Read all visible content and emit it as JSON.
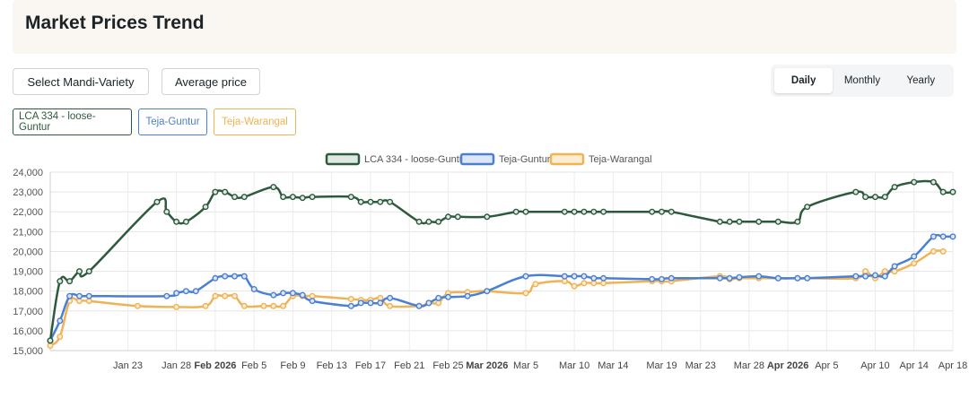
{
  "header": {
    "title": "Market Prices Trend"
  },
  "controls": {
    "select_label": "Select Mandi-Variety",
    "average_label": "Average price",
    "period_tabs": [
      {
        "label": "Daily",
        "active": true
      },
      {
        "label": "Monthly",
        "active": false
      },
      {
        "label": "Yearly",
        "active": false
      }
    ]
  },
  "chips": [
    {
      "label": "LCA 334 - loose-Guntur",
      "color": "#2d5a3d"
    },
    {
      "label": "Teja-Guntur",
      "color": "#4a7fd4"
    },
    {
      "label": "Teja-Warangal",
      "color": "#f0b354"
    }
  ],
  "chart_data": {
    "type": "line",
    "title": "",
    "xlabel": "",
    "ylabel": "",
    "ylim": [
      15000,
      24000
    ],
    "yticks": [
      15000,
      16000,
      17000,
      18000,
      19000,
      20000,
      21000,
      22000,
      23000,
      24000
    ],
    "ytick_labels": [
      "15,000",
      "16,000",
      "17,000",
      "18,000",
      "19,000",
      "20,000",
      "21,000",
      "22,000",
      "23,000",
      "24,000"
    ],
    "xlim": [
      -6,
      87
    ],
    "xticks": [
      {
        "day": 2,
        "label": "Jan 23",
        "bold": false
      },
      {
        "day": 7,
        "label": "Jan 28",
        "bold": false
      },
      {
        "day": 11,
        "label": "Feb 2026",
        "bold": true
      },
      {
        "day": 15,
        "label": "Feb 5",
        "bold": false
      },
      {
        "day": 19,
        "label": "Feb 9",
        "bold": false
      },
      {
        "day": 23,
        "label": "Feb 13",
        "bold": false
      },
      {
        "day": 27,
        "label": "Feb 17",
        "bold": false
      },
      {
        "day": 31,
        "label": "Feb 21",
        "bold": false
      },
      {
        "day": 35,
        "label": "Feb 25",
        "bold": false
      },
      {
        "day": 39,
        "label": "Mar 2026",
        "bold": true
      },
      {
        "day": 43,
        "label": "Mar 5",
        "bold": false
      },
      {
        "day": 48,
        "label": "Mar 10",
        "bold": false
      },
      {
        "day": 52,
        "label": "Mar 14",
        "bold": false
      },
      {
        "day": 57,
        "label": "Mar 19",
        "bold": false
      },
      {
        "day": 61,
        "label": "Mar 23",
        "bold": false
      },
      {
        "day": 66,
        "label": "Mar 28",
        "bold": false
      },
      {
        "day": 70,
        "label": "Apr 2026",
        "bold": true
      },
      {
        "day": 74,
        "label": "Apr 5",
        "bold": false
      },
      {
        "day": 79,
        "label": "Apr 10",
        "bold": false
      },
      {
        "day": 83,
        "label": "Apr 14",
        "bold": false
      },
      {
        "day": 87,
        "label": "Apr 18",
        "bold": false
      }
    ],
    "series": [
      {
        "name": "LCA 334 - loose-Guntur",
        "color": "#2d5a3d",
        "fill": "#dfe8e2",
        "points": [
          [
            -6,
            15500
          ],
          [
            -5,
            18500
          ],
          [
            -4,
            18500
          ],
          [
            -3,
            19000
          ],
          [
            -2,
            19000
          ],
          [
            5,
            22500
          ],
          [
            6,
            22000
          ],
          [
            7,
            21500
          ],
          [
            8,
            21500
          ],
          [
            10,
            22250
          ],
          [
            11,
            23000
          ],
          [
            12,
            23000
          ],
          [
            13,
            22750
          ],
          [
            14,
            22750
          ],
          [
            17,
            23250
          ],
          [
            18,
            22750
          ],
          [
            19,
            22750
          ],
          [
            20,
            22700
          ],
          [
            21,
            22750
          ],
          [
            25,
            22750
          ],
          [
            26,
            22500
          ],
          [
            27,
            22500
          ],
          [
            28,
            22500
          ],
          [
            29,
            22500
          ],
          [
            32,
            21500
          ],
          [
            33,
            21500
          ],
          [
            34,
            21500
          ],
          [
            35,
            21750
          ],
          [
            36,
            21750
          ],
          [
            39,
            21750
          ],
          [
            42,
            22000
          ],
          [
            43,
            22000
          ],
          [
            47,
            22000
          ],
          [
            48,
            22000
          ],
          [
            49,
            22000
          ],
          [
            50,
            22000
          ],
          [
            51,
            22000
          ],
          [
            56,
            22000
          ],
          [
            57,
            22000
          ],
          [
            58,
            22000
          ],
          [
            63,
            21500
          ],
          [
            64,
            21500
          ],
          [
            65,
            21500
          ],
          [
            67,
            21500
          ],
          [
            69,
            21500
          ],
          [
            71,
            21500
          ],
          [
            72,
            22250
          ],
          [
            77,
            23000
          ],
          [
            78,
            22750
          ],
          [
            79,
            22750
          ],
          [
            80,
            22750
          ],
          [
            81,
            23250
          ],
          [
            83,
            23500
          ],
          [
            85,
            23500
          ],
          [
            86,
            23000
          ],
          [
            87,
            23000
          ]
        ]
      },
      {
        "name": "Teja-Guntur",
        "color": "#4a7fd4",
        "fill": "#dde6f5",
        "points": [
          [
            -6,
            15500
          ],
          [
            -5,
            16500
          ],
          [
            -4,
            17750
          ],
          [
            -3,
            17750
          ],
          [
            -2,
            17750
          ],
          [
            6,
            17750
          ],
          [
            7,
            17900
          ],
          [
            8,
            18000
          ],
          [
            9,
            18000
          ],
          [
            11,
            18650
          ],
          [
            12,
            18750
          ],
          [
            13,
            18750
          ],
          [
            14,
            18750
          ],
          [
            15,
            18100
          ],
          [
            17,
            17800
          ],
          [
            18,
            17900
          ],
          [
            19,
            17900
          ],
          [
            20,
            17800
          ],
          [
            21,
            17500
          ],
          [
            25,
            17250
          ],
          [
            26,
            17400
          ],
          [
            27,
            17400
          ],
          [
            28,
            17400
          ],
          [
            29,
            17650
          ],
          [
            32,
            17250
          ],
          [
            33,
            17400
          ],
          [
            34,
            17650
          ],
          [
            35,
            17700
          ],
          [
            37,
            17750
          ],
          [
            39,
            18000
          ],
          [
            43,
            18750
          ],
          [
            47,
            18750
          ],
          [
            48,
            18750
          ],
          [
            49,
            18750
          ],
          [
            50,
            18650
          ],
          [
            51,
            18650
          ],
          [
            56,
            18600
          ],
          [
            57,
            18600
          ],
          [
            58,
            18650
          ],
          [
            63,
            18650
          ],
          [
            64,
            18650
          ],
          [
            65,
            18700
          ],
          [
            67,
            18750
          ],
          [
            69,
            18650
          ],
          [
            71,
            18650
          ],
          [
            72,
            18650
          ],
          [
            77,
            18750
          ],
          [
            78,
            18750
          ],
          [
            79,
            18800
          ],
          [
            80,
            18750
          ],
          [
            81,
            19250
          ],
          [
            83,
            19750
          ],
          [
            85,
            20750
          ],
          [
            86,
            20750
          ],
          [
            87,
            20750
          ]
        ]
      },
      {
        "name": "Teja-Warangal",
        "color": "#f0b354",
        "fill": "#fbecd2",
        "points": [
          [
            -6,
            15250
          ],
          [
            -5,
            15700
          ],
          [
            -4,
            17500
          ],
          [
            -3,
            17500
          ],
          [
            -2,
            17500
          ],
          [
            3,
            17250
          ],
          [
            7,
            17200
          ],
          [
            10,
            17250
          ],
          [
            11,
            17750
          ],
          [
            12,
            17750
          ],
          [
            13,
            17750
          ],
          [
            14,
            17250
          ],
          [
            16,
            17250
          ],
          [
            17,
            17250
          ],
          [
            18,
            17250
          ],
          [
            19,
            17750
          ],
          [
            20,
            17750
          ],
          [
            21,
            17750
          ],
          [
            25,
            17600
          ],
          [
            26,
            17550
          ],
          [
            27,
            17550
          ],
          [
            28,
            17650
          ],
          [
            29,
            17250
          ],
          [
            32,
            17250
          ],
          [
            33,
            17400
          ],
          [
            34,
            17400
          ],
          [
            35,
            17900
          ],
          [
            37,
            17950
          ],
          [
            39,
            18000
          ],
          [
            43,
            17900
          ],
          [
            44,
            18350
          ],
          [
            47,
            18500
          ],
          [
            48,
            18250
          ],
          [
            49,
            18400
          ],
          [
            50,
            18400
          ],
          [
            51,
            18400
          ],
          [
            56,
            18500
          ],
          [
            57,
            18500
          ],
          [
            58,
            18500
          ],
          [
            63,
            18750
          ],
          [
            64,
            18600
          ],
          [
            65,
            18650
          ],
          [
            67,
            18650
          ],
          [
            69,
            18650
          ],
          [
            71,
            18650
          ],
          [
            72,
            18650
          ],
          [
            77,
            18650
          ],
          [
            78,
            19000
          ],
          [
            79,
            18650
          ],
          [
            80,
            19000
          ],
          [
            81,
            19000
          ],
          [
            83,
            19400
          ],
          [
            85,
            20000
          ],
          [
            86,
            20000
          ]
        ]
      }
    ]
  }
}
